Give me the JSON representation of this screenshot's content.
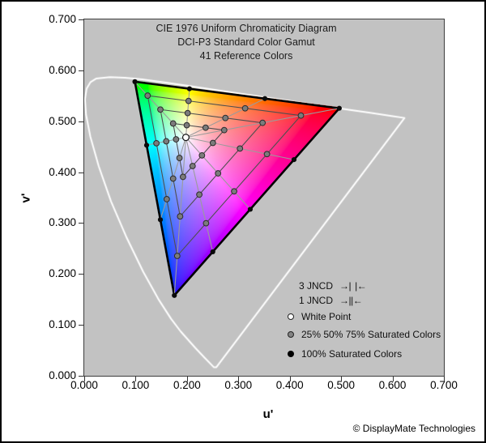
{
  "figure": {
    "title_lines": [
      "CIE 1976 Uniform Chromaticity Diagram",
      "DCI-P3 Standard Color Gamut",
      "41 Reference Colors"
    ],
    "copyright": "© DisplayMate Technologies"
  },
  "axes": {
    "x": {
      "label": "u'",
      "ticks": [
        "0.000",
        "0.100",
        "0.200",
        "0.300",
        "0.400",
        "0.500",
        "0.600",
        "0.700"
      ],
      "min": 0,
      "max": 0.7
    },
    "y": {
      "label": "v'",
      "ticks": [
        "0.700",
        "0.600",
        "0.500",
        "0.400",
        "0.300",
        "0.200",
        "0.100",
        "0.000"
      ],
      "min": 0,
      "max": 0.7
    }
  },
  "legend": {
    "jncd_3": {
      "label": "3 JNCD",
      "marker_left": "→|",
      "marker_right": "|←"
    },
    "jncd_1": {
      "label": "1 JNCD",
      "marker_left": "→|",
      "marker_right": "|←"
    },
    "white_point": {
      "label": "White Point"
    },
    "partial_sat": {
      "label": "25% 50% 75% Saturated Colors"
    },
    "full_sat": {
      "label": "100% Saturated Colors"
    }
  },
  "colors": {
    "plot_bg": "#c2c2c2",
    "locus": "#ffffff",
    "gamut_edge": "#000000",
    "radial_line": "#9b9b9b",
    "polygon_line": "#4f4f4f",
    "dot_gray": "#7c7c7c",
    "dot_gray_stroke": "#2b2b2b",
    "dot_black": "#0a0a0a",
    "white_point_fill": "#ffffff",
    "white_point_stroke": "#111111"
  },
  "chart_data": {
    "type": "scatter",
    "title": "CIE 1976 Uniform Chromaticity Diagram — DCI-P3 Standard Color Gamut — 41 Reference Colors",
    "xlabel": "u'",
    "ylabel": "v'",
    "xlim": [
      0,
      0.7
    ],
    "ylim": [
      0,
      0.7
    ],
    "grid": false,
    "legend_position": "lower right",
    "reference_color_count": 41,
    "white_point": {
      "name": "D65 White Point",
      "u": 0.1978,
      "v": 0.4683
    },
    "gamut_primaries": {
      "red": [
        0.4964,
        0.5255
      ],
      "green": [
        0.0986,
        0.5777
      ],
      "blue": [
        0.1754,
        0.1579
      ]
    },
    "saturation_levels": [
      0.25,
      0.5,
      0.75,
      1.0
    ],
    "hue_points_100": [
      {
        "name": "green",
        "uv": [
          0.0986,
          0.5777
        ]
      },
      {
        "name": "yellow",
        "uv": [
          0.2048,
          0.5638
        ]
      },
      {
        "name": "orange",
        "uv": [
          0.3516,
          0.5445
        ]
      },
      {
        "name": "red",
        "uv": [
          0.4964,
          0.5255
        ]
      },
      {
        "name": "red-magenta",
        "uv": [
          0.4083,
          0.4246
        ]
      },
      {
        "name": "magenta",
        "uv": [
          0.3231,
          0.327
        ]
      },
      {
        "name": "purple",
        "uv": [
          0.2502,
          0.2435
        ]
      },
      {
        "name": "blue",
        "uv": [
          0.1754,
          0.1579
        ]
      },
      {
        "name": "cyan-blue",
        "uv": [
          0.1482,
          0.3065
        ]
      },
      {
        "name": "cyan",
        "uv": [
          0.1214,
          0.453
        ]
      }
    ],
    "spectral_locus": [
      [
        0.2569,
        0.0166
      ],
      [
        0.2522,
        0.0169
      ],
      [
        0.2347,
        0.035
      ],
      [
        0.2161,
        0.0549
      ],
      [
        0.1877,
        0.0871
      ],
      [
        0.169,
        0.112
      ],
      [
        0.1441,
        0.151
      ],
      [
        0.1147,
        0.2044
      ],
      [
        0.0828,
        0.2708
      ],
      [
        0.0521,
        0.3427
      ],
      [
        0.0282,
        0.4117
      ],
      [
        0.0119,
        0.4698
      ],
      [
        0.0035,
        0.5131
      ],
      [
        0.0014,
        0.5432
      ],
      [
        0.0046,
        0.5639
      ],
      [
        0.0123,
        0.577
      ],
      [
        0.0231,
        0.5837
      ],
      [
        0.0501,
        0.5867
      ],
      [
        0.0792,
        0.5856
      ],
      [
        0.1127,
        0.5821
      ],
      [
        0.1531,
        0.5766
      ],
      [
        0.2026,
        0.5694
      ],
      [
        0.2623,
        0.5604
      ],
      [
        0.3315,
        0.5501
      ],
      [
        0.4035,
        0.5393
      ],
      [
        0.4691,
        0.5295
      ],
      [
        0.5203,
        0.5219
      ],
      [
        0.5565,
        0.5165
      ],
      [
        0.6005,
        0.5099
      ],
      [
        0.6234,
        0.5065
      ]
    ]
  }
}
